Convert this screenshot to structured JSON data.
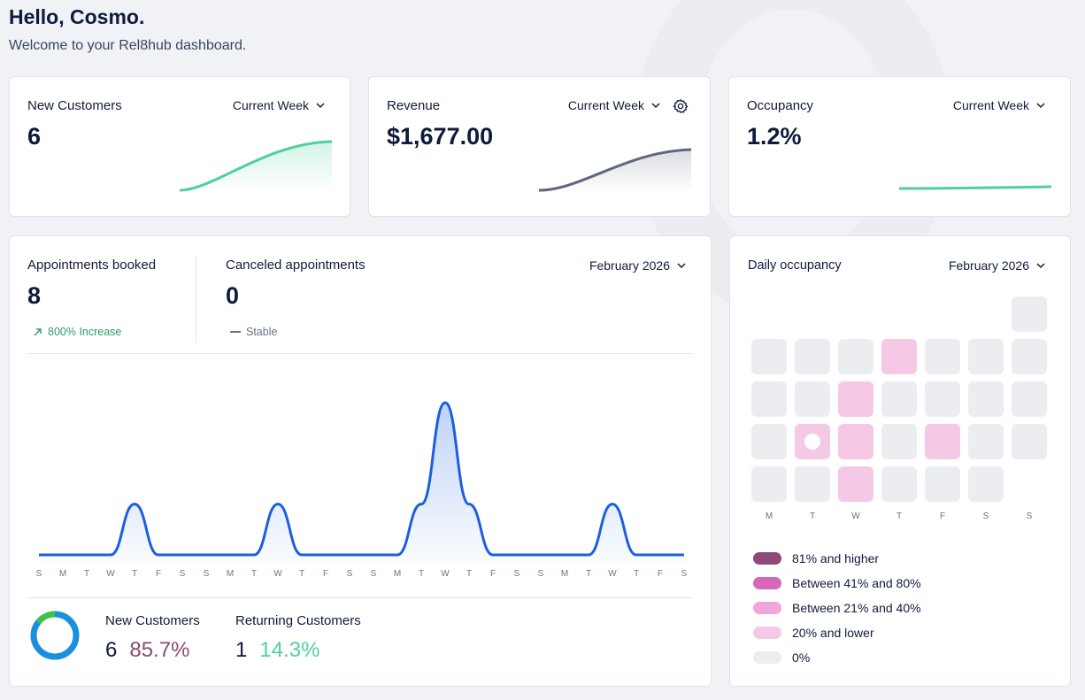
{
  "header": {
    "greeting": "Hello, Cosmo.",
    "welcome": "Welcome to your Rel8hub dashboard."
  },
  "kpis": {
    "new_customers": {
      "title": "New Customers",
      "period": "Current Week",
      "value": "6",
      "color": "#4ed19a"
    },
    "revenue": {
      "title": "Revenue",
      "period": "Current Week",
      "value": "$1,677.00",
      "color": "#5f6780"
    },
    "occupancy": {
      "title": "Occupancy",
      "period": "Current Week",
      "value": "1.2%",
      "color": "#4ed19a"
    }
  },
  "appointments": {
    "period": "February 2026",
    "booked": {
      "title": "Appointments booked",
      "value": "8",
      "trend": "800% Increase"
    },
    "canceled": {
      "title": "Canceled appointments",
      "value": "0",
      "trend": "Stable"
    },
    "line_color": "#1a5fe0",
    "day_labels": [
      "S",
      "M",
      "T",
      "W",
      "T",
      "F",
      "S",
      "S",
      "M",
      "T",
      "W",
      "T",
      "F",
      "S",
      "S",
      "M",
      "T",
      "W",
      "T",
      "F",
      "S",
      "S",
      "M",
      "T",
      "W",
      "T",
      "F",
      "S"
    ]
  },
  "chart_data": {
    "type": "area",
    "title": "Appointments booked",
    "x": [
      "S",
      "M",
      "T",
      "W",
      "T",
      "F",
      "S",
      "S",
      "M",
      "T",
      "W",
      "T",
      "F",
      "S",
      "S",
      "M",
      "T",
      "W",
      "T",
      "F",
      "S",
      "S",
      "M",
      "T",
      "W",
      "T",
      "F",
      "S"
    ],
    "values": [
      0,
      0,
      0,
      0,
      1,
      0,
      0,
      0,
      0,
      0,
      1,
      0,
      0,
      0,
      0,
      0,
      1,
      3,
      1,
      0,
      0,
      0,
      0,
      0,
      1,
      0,
      0,
      0
    ],
    "ylim": [
      0,
      3
    ]
  },
  "customers": {
    "new": {
      "label": "New Customers",
      "count": "6",
      "percent": "85.7%",
      "percent_color": "#8a4d6e"
    },
    "returning": {
      "label": "Returning Customers",
      "count": "1",
      "percent": "14.3%",
      "percent_color": "#4ed19a"
    },
    "donut": {
      "new_share": 85.7,
      "new_color": "#1a8fe0",
      "returning_color": "#3ec24a"
    }
  },
  "daily_occupancy": {
    "title": "Daily occupancy",
    "period": "February 2026",
    "weekday_labels": [
      "M",
      "T",
      "W",
      "T",
      "F",
      "S",
      "S"
    ],
    "weeks": [
      [
        "",
        "",
        "",
        "",
        "",
        "",
        "0"
      ],
      [
        "0",
        "0",
        "0",
        "20",
        "0",
        "0",
        "0"
      ],
      [
        "0",
        "0",
        "20",
        "0",
        "0",
        "0",
        "0"
      ],
      [
        "0",
        "today",
        "20",
        "0",
        "20",
        "0",
        "0"
      ],
      [
        "0",
        "0",
        "20",
        "0",
        "0",
        "0",
        ""
      ]
    ],
    "legend": [
      {
        "label": "81% and higher",
        "color": "#8c4a78"
      },
      {
        "label": "Between 41% and 80%",
        "color": "#d668b8"
      },
      {
        "label": "Between 21% and 40%",
        "color": "#f0a6d9"
      },
      {
        "label": "20% and lower",
        "color": "#f5c8e6"
      },
      {
        "label": "0%",
        "color": "#ecedf1"
      }
    ]
  }
}
